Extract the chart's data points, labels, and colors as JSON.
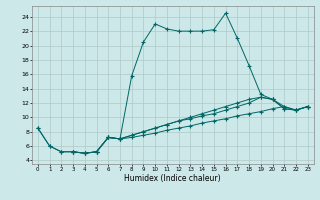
{
  "xlabel": "Humidex (Indice chaleur)",
  "ylabel": "",
  "background_color": "#cce8e8",
  "grid_color": "#b0c8c8",
  "line_color": "#006666",
  "xlim": [
    -0.5,
    23.5
  ],
  "ylim": [
    3.5,
    25.5
  ],
  "xticks": [
    0,
    1,
    2,
    3,
    4,
    5,
    6,
    7,
    8,
    9,
    10,
    11,
    12,
    13,
    14,
    15,
    16,
    17,
    18,
    19,
    20,
    21,
    22,
    23
  ],
  "yticks": [
    4,
    6,
    8,
    10,
    12,
    14,
    16,
    18,
    20,
    22,
    24
  ],
  "curve1_x": [
    0,
    1,
    2,
    3,
    4,
    5,
    6,
    7,
    8,
    9,
    10,
    11,
    12,
    13,
    14,
    15,
    16,
    17,
    18,
    19,
    20,
    21,
    22,
    23
  ],
  "curve1_y": [
    8.5,
    6.0,
    5.2,
    5.2,
    5.0,
    5.2,
    7.2,
    7.0,
    15.8,
    20.5,
    23.0,
    22.3,
    22.0,
    22.0,
    22.0,
    22.2,
    24.5,
    21.0,
    17.2,
    13.2,
    12.5,
    11.2,
    11.0,
    11.5
  ],
  "curve2_x": [
    0,
    1,
    2,
    3,
    4,
    5,
    6,
    7,
    8,
    9,
    10,
    11,
    12,
    13,
    14,
    15,
    16,
    17,
    18,
    19,
    20,
    21,
    22,
    23
  ],
  "curve2_y": [
    8.5,
    6.0,
    5.2,
    5.2,
    5.0,
    5.2,
    7.2,
    7.0,
    7.5,
    8.0,
    8.5,
    9.0,
    9.5,
    9.8,
    10.2,
    10.5,
    11.0,
    11.5,
    12.0,
    12.8,
    12.5,
    11.2,
    11.0,
    11.5
  ],
  "curve3_x": [
    3,
    4,
    5,
    6,
    7,
    8,
    9,
    10,
    11,
    12,
    13,
    14,
    15,
    16,
    17,
    18,
    19,
    20,
    21,
    22,
    23
  ],
  "curve3_y": [
    5.2,
    5.0,
    5.2,
    7.2,
    7.0,
    7.2,
    7.5,
    7.8,
    8.2,
    8.5,
    8.8,
    9.2,
    9.5,
    9.8,
    10.2,
    10.5,
    10.8,
    11.2,
    11.5,
    11.0,
    11.5
  ],
  "curve4_x": [
    3,
    4,
    5,
    6,
    7,
    8,
    9,
    10,
    11,
    12,
    13,
    14,
    15,
    16,
    17,
    18,
    19,
    20,
    21,
    22,
    23
  ],
  "curve4_y": [
    5.2,
    5.0,
    5.2,
    7.2,
    7.0,
    7.5,
    8.0,
    8.5,
    9.0,
    9.5,
    10.0,
    10.5,
    11.0,
    11.5,
    12.0,
    12.5,
    12.8,
    12.5,
    11.5,
    11.0,
    11.5
  ]
}
